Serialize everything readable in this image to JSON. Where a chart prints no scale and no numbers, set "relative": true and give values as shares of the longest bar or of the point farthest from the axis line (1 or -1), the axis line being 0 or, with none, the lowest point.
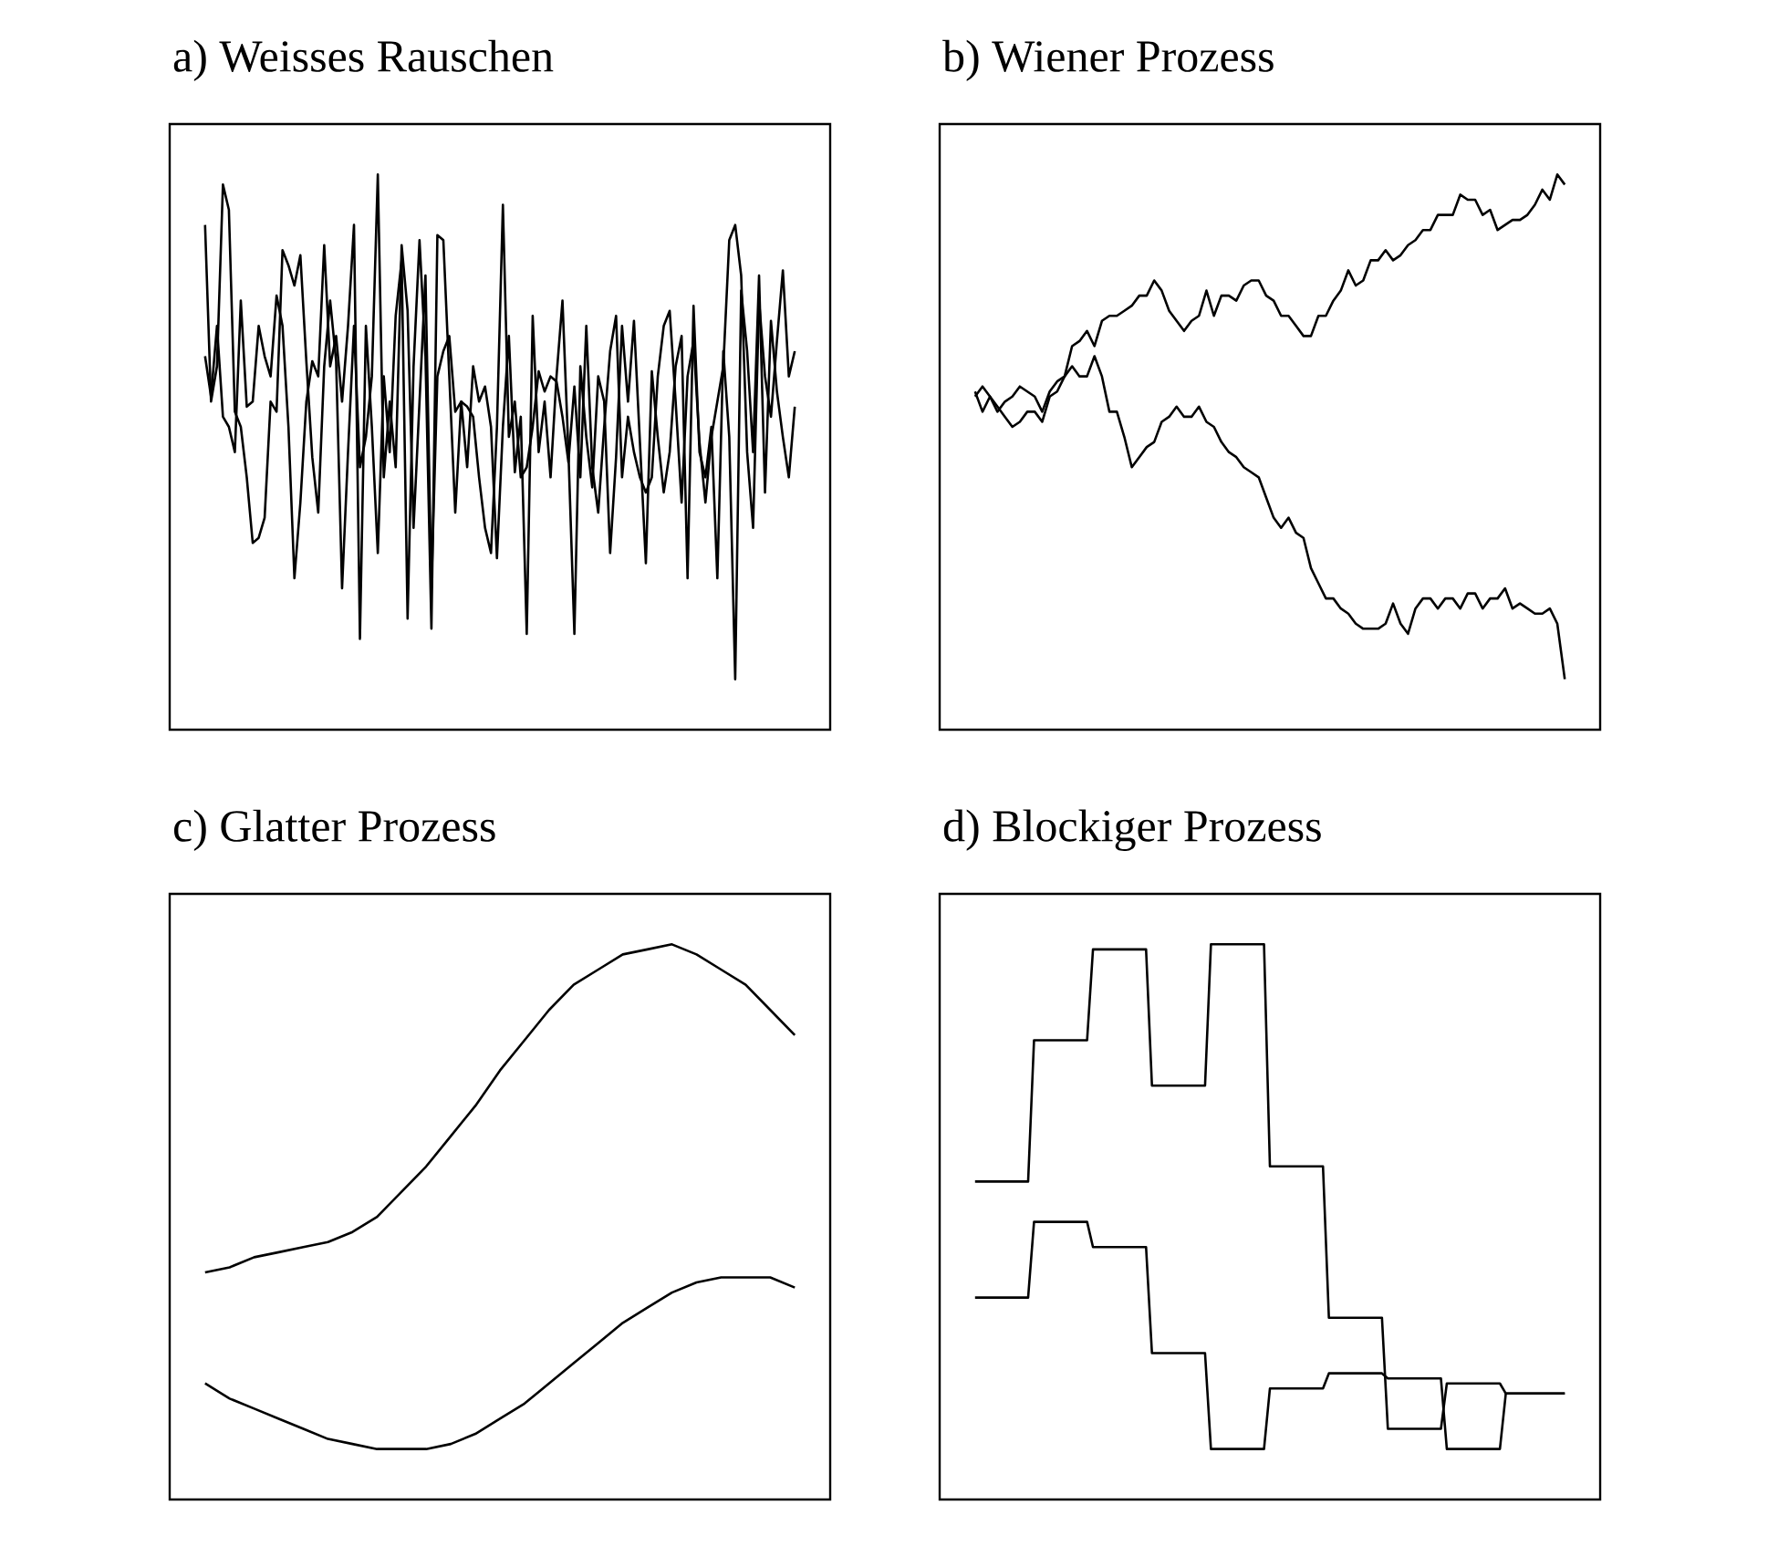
{
  "chart_data": [
    {
      "type": "line",
      "title": "a) Weisses Rauschen",
      "relative": true,
      "tick_labels": false,
      "categories": [
        null,
        null,
        null,
        null,
        null,
        null,
        null,
        null,
        null,
        null,
        null,
        null,
        null,
        null,
        null,
        null,
        null,
        null,
        null,
        null,
        null,
        null,
        null,
        null,
        null,
        null,
        null,
        null,
        null,
        null,
        null,
        null,
        null,
        null,
        null,
        null,
        null,
        null,
        null,
        null,
        null,
        null,
        null,
        null,
        null,
        null,
        null,
        null,
        null,
        null,
        null,
        null,
        null,
        null,
        null,
        null,
        null,
        null,
        null,
        null,
        null,
        null,
        null,
        null,
        null,
        null,
        null,
        null,
        null,
        null,
        null,
        null,
        null,
        null,
        null,
        null,
        null,
        null,
        null,
        null,
        null,
        null,
        null,
        null,
        null,
        null,
        null,
        null,
        null,
        null,
        null,
        null,
        null,
        null,
        null,
        null,
        null,
        null,
        null,
        null
      ],
      "series": [
        {
          "color": "#000000",
          "values": [
            0.9,
            0.55,
            0.62,
            0.98,
            0.93,
            0.53,
            0.5,
            0.4,
            0.27,
            0.28,
            0.32,
            0.55,
            0.53,
            0.85,
            0.82,
            0.78,
            0.84,
            0.63,
            0.44,
            0.33,
            0.62,
            0.75,
            0.63,
            0.18,
            0.45,
            0.7,
            0.42,
            0.48,
            0.6,
            1.0,
            0.4,
            0.55,
            0.42,
            0.86,
            0.73,
            0.3,
            0.55,
            0.8,
            0.18,
            0.6,
            0.65,
            0.68,
            0.53,
            0.55,
            0.54,
            0.52,
            0.4,
            0.3,
            0.25,
            0.5,
            0.94,
            0.48,
            0.55,
            0.4,
            0.42,
            0.5,
            0.61,
            0.57,
            0.6,
            0.59,
            0.52,
            0.43,
            0.58,
            0.4,
            0.7,
            0.42,
            0.33,
            0.5,
            0.65,
            0.72,
            0.4,
            0.52,
            0.45,
            0.4,
            0.37,
            0.4,
            0.6,
            0.7,
            0.73,
            0.55,
            0.35,
            0.6,
            0.67,
            0.47,
            0.35,
            0.48,
            0.55,
            0.62,
            0.87,
            0.9,
            0.8,
            0.45,
            0.3,
            0.75,
            0.6,
            0.52,
            0.67,
            0.81,
            0.6,
            0.65
          ]
        },
        {
          "color": "#000000",
          "values": [
            0.64,
            0.56,
            0.7,
            0.52,
            0.5,
            0.45,
            0.75,
            0.54,
            0.55,
            0.7,
            0.64,
            0.6,
            0.76,
            0.7,
            0.5,
            0.2,
            0.35,
            0.55,
            0.63,
            0.6,
            0.86,
            0.62,
            0.68,
            0.55,
            0.7,
            0.9,
            0.08,
            0.7,
            0.5,
            0.25,
            0.6,
            0.45,
            0.72,
            0.83,
            0.12,
            0.62,
            0.87,
            0.64,
            0.1,
            0.88,
            0.87,
            0.6,
            0.33,
            0.55,
            0.42,
            0.62,
            0.55,
            0.58,
            0.5,
            0.24,
            0.5,
            0.68,
            0.41,
            0.52,
            0.09,
            0.72,
            0.45,
            0.55,
            0.4,
            0.6,
            0.75,
            0.45,
            0.09,
            0.62,
            0.48,
            0.38,
            0.6,
            0.55,
            0.25,
            0.44,
            0.7,
            0.55,
            0.71,
            0.47,
            0.23,
            0.61,
            0.48,
            0.37,
            0.45,
            0.62,
            0.68,
            0.2,
            0.74,
            0.45,
            0.4,
            0.5,
            0.2,
            0.65,
            0.48,
            0.0,
            0.77,
            0.65,
            0.45,
            0.8,
            0.37,
            0.71,
            0.57,
            0.48,
            0.4,
            0.54
          ]
        }
      ]
    },
    {
      "type": "line",
      "title": "b) Wiener Prozess",
      "relative": true,
      "tick_labels": false,
      "categories": [
        null,
        null,
        null,
        null,
        null,
        null,
        null,
        null,
        null,
        null,
        null,
        null,
        null,
        null,
        null,
        null,
        null,
        null,
        null,
        null,
        null,
        null,
        null,
        null,
        null,
        null,
        null,
        null,
        null,
        null,
        null,
        null,
        null,
        null,
        null,
        null,
        null,
        null,
        null,
        null,
        null,
        null,
        null,
        null,
        null,
        null,
        null,
        null,
        null,
        null,
        null,
        null,
        null,
        null,
        null,
        null,
        null,
        null,
        null,
        null,
        null,
        null,
        null,
        null,
        null,
        null,
        null,
        null,
        null,
        null,
        null,
        null,
        null,
        null,
        null,
        null,
        null,
        null,
        null,
        null
      ],
      "series": [
        {
          "color": "#000000",
          "values": [
            0.57,
            0.53,
            0.56,
            0.53,
            0.55,
            0.56,
            0.58,
            0.57,
            0.56,
            0.53,
            0.57,
            0.59,
            0.6,
            0.66,
            0.67,
            0.69,
            0.66,
            0.71,
            0.72,
            0.72,
            0.73,
            0.74,
            0.76,
            0.76,
            0.79,
            0.77,
            0.73,
            0.71,
            0.69,
            0.71,
            0.72,
            0.77,
            0.72,
            0.76,
            0.76,
            0.75,
            0.78,
            0.79,
            0.79,
            0.76,
            0.75,
            0.72,
            0.72,
            0.7,
            0.68,
            0.68,
            0.72,
            0.72,
            0.75,
            0.77,
            0.81,
            0.78,
            0.79,
            0.83,
            0.83,
            0.85,
            0.83,
            0.84,
            0.86,
            0.87,
            0.89,
            0.89,
            0.92,
            0.92,
            0.92,
            0.96,
            0.95,
            0.95,
            0.92,
            0.93,
            0.89,
            0.9,
            0.91,
            0.91,
            0.92,
            0.94,
            0.97,
            0.95,
            1.0,
            0.98
          ]
        },
        {
          "color": "#000000",
          "values": [
            0.56,
            0.58,
            0.56,
            0.54,
            0.52,
            0.5,
            0.51,
            0.53,
            0.53,
            0.51,
            0.56,
            0.57,
            0.6,
            0.62,
            0.6,
            0.6,
            0.64,
            0.6,
            0.53,
            0.53,
            0.48,
            0.42,
            0.44,
            0.46,
            0.47,
            0.51,
            0.52,
            0.54,
            0.52,
            0.52,
            0.54,
            0.51,
            0.5,
            0.47,
            0.45,
            0.44,
            0.42,
            0.41,
            0.4,
            0.36,
            0.32,
            0.3,
            0.32,
            0.29,
            0.28,
            0.22,
            0.19,
            0.16,
            0.16,
            0.14,
            0.13,
            0.11,
            0.1,
            0.1,
            0.1,
            0.11,
            0.15,
            0.11,
            0.09,
            0.14,
            0.16,
            0.16,
            0.14,
            0.16,
            0.16,
            0.14,
            0.17,
            0.17,
            0.14,
            0.16,
            0.16,
            0.18,
            0.14,
            0.15,
            0.14,
            0.13,
            0.13,
            0.14,
            0.11,
            0.0
          ]
        }
      ]
    },
    {
      "type": "line",
      "title": "c) Glatter Prozess",
      "relative": true,
      "tick_labels": false,
      "categories": [
        null,
        null,
        null,
        null,
        null,
        null,
        null,
        null,
        null,
        null,
        null,
        null,
        null,
        null,
        null,
        null,
        null,
        null,
        null,
        null,
        null,
        null,
        null,
        null,
        null
      ],
      "series": [
        {
          "color": "#000000",
          "values": [
            0.35,
            0.36,
            0.38,
            0.39,
            0.4,
            0.41,
            0.43,
            0.46,
            0.51,
            0.56,
            0.62,
            0.68,
            0.75,
            0.81,
            0.87,
            0.92,
            0.95,
            0.98,
            0.99,
            1.0,
            0.98,
            0.95,
            0.92,
            0.87,
            0.82
          ]
        },
        {
          "color": "#000000",
          "values": [
            0.13,
            0.1,
            0.08,
            0.06,
            0.04,
            0.02,
            0.01,
            0.0,
            0.0,
            0.0,
            0.01,
            0.03,
            0.06,
            0.09,
            0.13,
            0.17,
            0.21,
            0.25,
            0.28,
            0.31,
            0.33,
            0.34,
            0.34,
            0.34,
            0.32
          ]
        }
      ]
    },
    {
      "type": "line",
      "title": "d) Blockiger Prozess",
      "relative": true,
      "tick_labels": false,
      "categories": [
        null,
        null,
        null,
        null,
        null,
        null,
        null,
        null,
        null,
        null,
        null,
        null,
        null,
        null,
        null,
        null,
        null,
        null,
        null,
        null,
        null,
        null,
        null,
        null,
        null,
        null,
        null,
        null,
        null,
        null,
        null,
        null,
        null,
        null,
        null,
        null,
        null,
        null,
        null,
        null,
        null,
        null,
        null,
        null,
        null,
        null,
        null,
        null,
        null,
        null,
        null,
        null,
        null,
        null,
        null,
        null,
        null,
        null,
        null,
        null,
        null,
        null,
        null,
        null,
        null,
        null,
        null,
        null,
        null,
        null,
        null,
        null,
        null,
        null,
        null,
        null,
        null,
        null,
        null,
        null,
        null,
        null,
        null,
        null,
        null,
        null,
        null,
        null,
        null,
        null,
        null,
        null,
        null,
        null,
        null,
        null,
        null,
        null,
        null,
        null,
        null
      ],
      "series": [
        {
          "color": "#000000",
          "values": [
            0.53,
            0.53,
            0.53,
            0.53,
            0.53,
            0.53,
            0.53,
            0.53,
            0.53,
            0.53,
            0.81,
            0.81,
            0.81,
            0.81,
            0.81,
            0.81,
            0.81,
            0.81,
            0.81,
            0.81,
            0.99,
            0.99,
            0.99,
            0.99,
            0.99,
            0.99,
            0.99,
            0.99,
            0.99,
            0.99,
            0.72,
            0.72,
            0.72,
            0.72,
            0.72,
            0.72,
            0.72,
            0.72,
            0.72,
            0.72,
            1.0,
            1.0,
            1.0,
            1.0,
            1.0,
            1.0,
            1.0,
            1.0,
            1.0,
            1.0,
            0.56,
            0.56,
            0.56,
            0.56,
            0.56,
            0.56,
            0.56,
            0.56,
            0.56,
            0.56,
            0.26,
            0.26,
            0.26,
            0.26,
            0.26,
            0.26,
            0.26,
            0.26,
            0.26,
            0.26,
            0.04,
            0.04,
            0.04,
            0.04,
            0.04,
            0.04,
            0.04,
            0.04,
            0.04,
            0.04,
            0.13,
            0.13,
            0.13,
            0.13,
            0.13,
            0.13,
            0.13,
            0.13,
            0.13,
            0.13,
            0.11,
            0.11,
            0.11,
            0.11,
            0.11,
            0.11,
            0.11,
            0.11,
            0.11,
            0.11,
            0.11
          ]
        },
        {
          "color": "#000000",
          "values": [
            0.3,
            0.3,
            0.3,
            0.3,
            0.3,
            0.3,
            0.3,
            0.3,
            0.3,
            0.3,
            0.45,
            0.45,
            0.45,
            0.45,
            0.45,
            0.45,
            0.45,
            0.45,
            0.45,
            0.45,
            0.4,
            0.4,
            0.4,
            0.4,
            0.4,
            0.4,
            0.4,
            0.4,
            0.4,
            0.4,
            0.19,
            0.19,
            0.19,
            0.19,
            0.19,
            0.19,
            0.19,
            0.19,
            0.19,
            0.19,
            0.0,
            0.0,
            0.0,
            0.0,
            0.0,
            0.0,
            0.0,
            0.0,
            0.0,
            0.0,
            0.12,
            0.12,
            0.12,
            0.12,
            0.12,
            0.12,
            0.12,
            0.12,
            0.12,
            0.12,
            0.15,
            0.15,
            0.15,
            0.15,
            0.15,
            0.15,
            0.15,
            0.15,
            0.15,
            0.15,
            0.14,
            0.14,
            0.14,
            0.14,
            0.14,
            0.14,
            0.14,
            0.14,
            0.14,
            0.14,
            0.0,
            0.0,
            0.0,
            0.0,
            0.0,
            0.0,
            0.0,
            0.0,
            0.0,
            0.0,
            0.11,
            0.11,
            0.11,
            0.11,
            0.11,
            0.11,
            0.11,
            0.11,
            0.11,
            0.11,
            0.11
          ]
        }
      ]
    }
  ]
}
